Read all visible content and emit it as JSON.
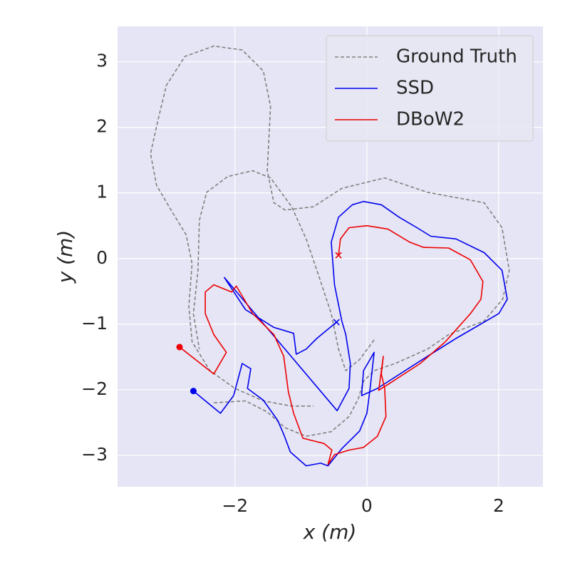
{
  "chart_data": {
    "type": "line",
    "x_label": "x (m)",
    "y_label": "y (m)",
    "xlim": [
      -3.78,
      2.67
    ],
    "ylim": [
      -3.48,
      3.54
    ],
    "xticks": [
      {
        "value": -2,
        "label": "−2"
      },
      0,
      2
    ],
    "yticks": [
      {
        "value": -3,
        "label": "−3"
      },
      {
        "value": -2,
        "label": "−2"
      },
      {
        "value": -1,
        "label": "−1"
      },
      0,
      1,
      2,
      3
    ],
    "grid": true,
    "background": "#e5e5f5",
    "legend": "upper right",
    "series": [
      {
        "name": "Ground Truth",
        "color": "#808080",
        "dashed": true,
        "x": [
          -2.32,
          -1.84,
          -1.51,
          -1.24,
          -0.92,
          -0.54,
          -0.27,
          -0.13,
          -0.05,
          0.11,
          0.43,
          0.92,
          1.24,
          1.78,
          2.06,
          2.16,
          2.05,
          1.78,
          0.92,
          0.27,
          -0.38,
          -0.81,
          -1.24,
          -1.41,
          -1.51,
          -1.46,
          -1.57,
          -1.89,
          -2.32,
          -2.76,
          -3.04,
          -3.17,
          -3.28,
          -3.19,
          -2.97,
          -2.74,
          -2.65,
          -2.7,
          -2.65,
          -2.38,
          -2.0,
          -1.57,
          -1.14,
          -0.81,
          null,
          0.11,
          -0.11,
          -0.32,
          -0.43,
          -0.54,
          -0.72,
          -0.92,
          -1.14,
          -1.46,
          -1.73,
          -2.11,
          -2.43,
          -2.54,
          -2.56,
          -2.63,
          -2.54
        ],
        "values": [
          -2.2,
          -2.17,
          -2.34,
          -2.58,
          -2.71,
          -2.64,
          -2.41,
          -2.14,
          -1.87,
          -1.71,
          -1.6,
          -1.38,
          -1.16,
          -0.95,
          -0.62,
          -0.18,
          0.47,
          0.85,
          1.01,
          1.23,
          1.07,
          0.79,
          0.74,
          0.85,
          1.34,
          2.32,
          2.86,
          3.18,
          3.24,
          3.08,
          2.64,
          2.1,
          1.6,
          1.12,
          0.74,
          0.36,
          -0.08,
          -0.73,
          -1.27,
          -1.71,
          -1.98,
          -2.17,
          -2.25,
          -2.25,
          null,
          -1.24,
          -1.54,
          -1.71,
          -1.38,
          -0.84,
          -0.29,
          0.3,
          0.79,
          1.23,
          1.34,
          1.25,
          1.01,
          0.58,
          -0.18,
          -0.84,
          -1.38
        ]
      },
      {
        "name": "SSD",
        "color": "#0000ee",
        "start_marker": "circle",
        "end_marker": "x",
        "x": [
          -2.63,
          -2.22,
          -2.02,
          -1.89,
          -1.76,
          -1.81,
          -1.57,
          -1.35,
          -1.26,
          -1.16,
          -0.92,
          -0.7,
          -0.59,
          -0.38,
          -0.11,
          0,
          0.05,
          0.11,
          -0.05,
          -0.08,
          0.16,
          0.92,
          1.35,
          2.0,
          2.13,
          2.05,
          1.78,
          1.35,
          0.97,
          0.76,
          0.49,
          0.22,
          -0.05,
          -0.22,
          -0.43,
          -0.54,
          -0.49,
          -0.38,
          -0.32,
          -0.25,
          -0.27,
          -0.45,
          -2.16,
          -1.84,
          -1.41,
          -1.11,
          -1.07,
          -0.92,
          -0.76,
          -0.46
        ],
        "values": [
          -2.02,
          -2.36,
          -2.09,
          -1.6,
          -1.68,
          -1.98,
          -2.16,
          -2.47,
          -2.68,
          -2.95,
          -3.16,
          -3.12,
          -3.16,
          -2.9,
          -2.63,
          -2.36,
          -1.98,
          -1.43,
          -1.71,
          -2.09,
          -1.98,
          -1.49,
          -1.22,
          -0.84,
          -0.62,
          -0.18,
          0.09,
          0.3,
          0.34,
          0.47,
          0.63,
          0.82,
          0.87,
          0.82,
          0.63,
          0.25,
          -0.4,
          -0.95,
          -1.16,
          -1.6,
          -1.98,
          -2.32,
          -0.29,
          -0.78,
          -1.05,
          -1.14,
          -1.46,
          -1.38,
          -1.22,
          -0.97
        ]
      },
      {
        "name": "DBoW2",
        "color": "#ee0000",
        "start_marker": "circle",
        "end_marker": "x",
        "x": [
          -2.84,
          -2.32,
          -2.13,
          -2.32,
          -2.45,
          -2.45,
          -2.32,
          -2.05,
          -1.98,
          -1.73,
          -1.41,
          -1.26,
          -1.19,
          -1.11,
          -0.97,
          -0.65,
          -0.53,
          -0.59,
          -0.49,
          -0.27,
          -0.05,
          0.16,
          0.29,
          0.27,
          0.22,
          0.25,
          0.18,
          0.32,
          0.81,
          1.19,
          1.57,
          1.73,
          1.76,
          1.57,
          1.24,
          0.86,
          0.65,
          0.32,
          0,
          -0.27,
          -0.4,
          -0.43
        ],
        "values": [
          -1.35,
          -1.76,
          -1.43,
          -1.16,
          -0.84,
          -0.51,
          -0.4,
          -0.51,
          -0.42,
          -0.84,
          -1.16,
          -1.49,
          -2.03,
          -2.36,
          -2.74,
          -2.82,
          -2.92,
          -3.14,
          -2.99,
          -2.92,
          -2.88,
          -2.71,
          -2.41,
          -1.98,
          -1.76,
          -1.49,
          -2.01,
          -1.92,
          -1.6,
          -1.27,
          -0.84,
          -0.62,
          -0.35,
          -0.02,
          0.16,
          0.17,
          0.25,
          0.45,
          0.5,
          0.47,
          0.3,
          0.05
        ]
      }
    ]
  }
}
